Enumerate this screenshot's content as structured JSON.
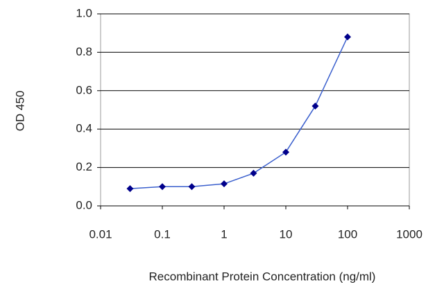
{
  "chart_data": {
    "type": "line",
    "x_label": "Recombinant Protein Concentration (ng/ml)",
    "y_label": "OD 450",
    "x": [
      0.03,
      0.1,
      0.3,
      1,
      3,
      10,
      30,
      100
    ],
    "series": [
      {
        "color": "#00008b",
        "line_color": "#3a5fcd",
        "values": [
          0.09,
          0.1,
          0.1,
          0.115,
          0.17,
          0.28,
          0.52,
          0.88
        ]
      }
    ],
    "xlim": [
      0.01,
      1000
    ],
    "xticks": [
      0.01,
      0.1,
      1,
      10,
      100,
      1000
    ],
    "x_log": true,
    "ylim": [
      0,
      1
    ],
    "yticks": [
      {
        "value": 0,
        "label": "0.0"
      },
      0.2,
      0.4,
      0.6,
      0.8,
      {
        "value": 1,
        "label": "1.0"
      }
    ],
    "grid": true
  }
}
